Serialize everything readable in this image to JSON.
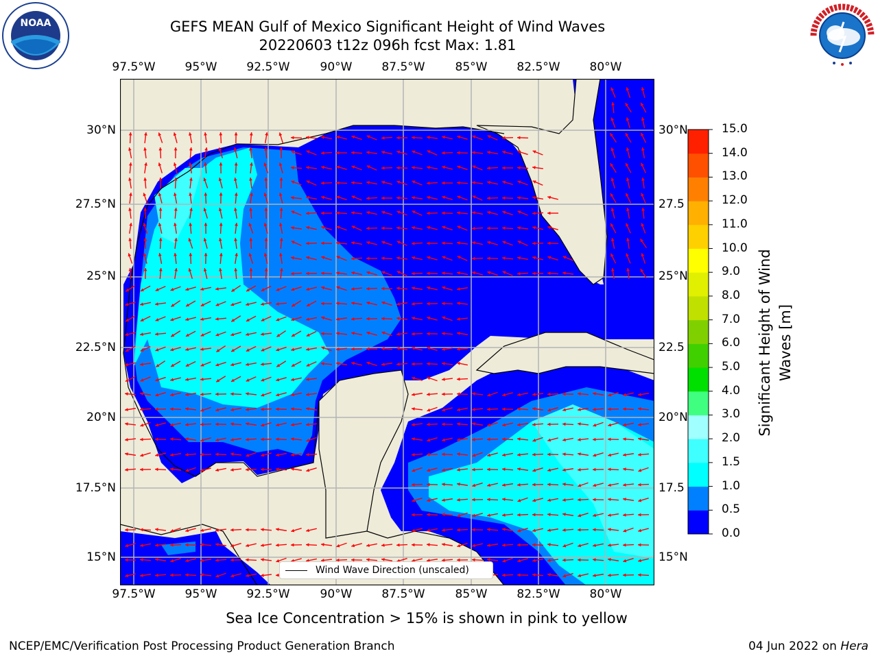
{
  "title": {
    "line1": "GEFS MEAN Gulf of Mexico Significant Height of Wind Waves",
    "line2": "20220603 t12z 096h fcst   Max: 1.81"
  },
  "map": {
    "lon_ticks": [
      "97.5°W",
      "95°W",
      "92.5°W",
      "90°W",
      "87.5°W",
      "85°W",
      "82.5°W",
      "80°W"
    ],
    "lat_ticks_left": [
      "30°N",
      "27.5°N",
      "25°N",
      "22.5°N",
      "20°N",
      "17.5°N",
      "15°N"
    ],
    "lat_ticks_right": [
      "30°N",
      "27.5",
      "25°N",
      "22.5",
      "20°N",
      "17.5",
      "15°N"
    ],
    "colors": {
      "land": "#eeebd9",
      "ocean_low": "#0000ff",
      "ocean_mid": "#0080ff",
      "ocean_high": "#00ffff",
      "arrow": "#ff0000",
      "grid": "#b4b4b4"
    },
    "legend_label": "Wind Wave Direction (unscaled)"
  },
  "colorbar": {
    "title": "Significant Height of Wind Waves [m]",
    "ticks": [
      "0.0",
      "0.5",
      "1.0",
      "1.5",
      "2.0",
      "3.0",
      "4.0",
      "5.0",
      "6.0",
      "7.0",
      "8.0",
      "9.0",
      "10.0",
      "11.0",
      "12.0",
      "13.0",
      "14.0",
      "15.0"
    ],
    "colors": [
      "#0000ff",
      "#0080ff",
      "#00ffff",
      "#40ffff",
      "#a0ffff",
      "#40ff80",
      "#00e000",
      "#40d000",
      "#80d000",
      "#c0e000",
      "#e0f000",
      "#ffff00",
      "#ffd000",
      "#ffb000",
      "#ff8000",
      "#ff5000",
      "#ff2000"
    ]
  },
  "subnote": "Sea Ice Concentration > 15% is shown in pink to yellow",
  "footer": {
    "credit": "NCEP/EMC/Verification Post Processing Product Generation Branch",
    "date": "04 Jun 2022 on ",
    "host": "Hera"
  },
  "logos": {
    "left": {
      "icon": "noaa-logo",
      "text": "NOAA"
    },
    "right": {
      "icon": "nws-logo",
      "text": "NATIONAL WEATHER SERVICE"
    }
  }
}
